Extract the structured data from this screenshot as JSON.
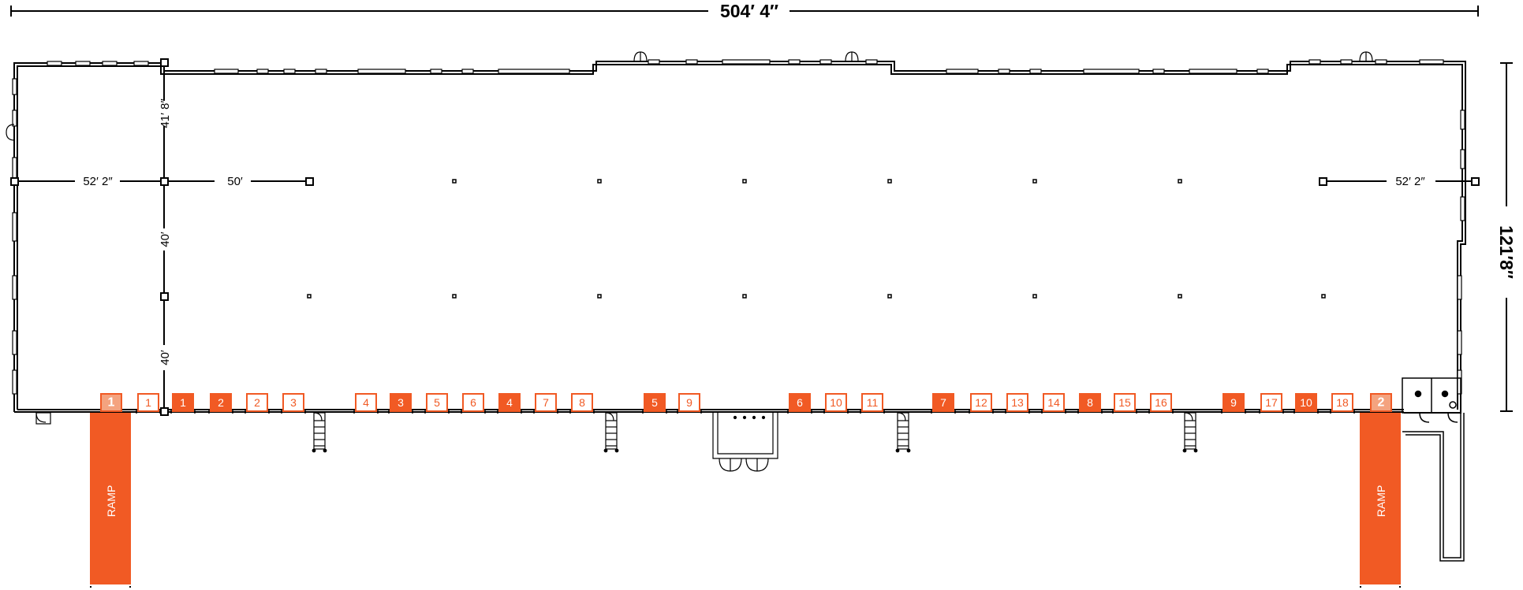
{
  "colors": {
    "accent": "#f15a24",
    "accent_light": "#f4a37f",
    "line": "#000000",
    "background": "#ffffff"
  },
  "dimensions": {
    "width_total": "504′ 4″",
    "depth_total": "121′8″",
    "bay_end_left": "52′ 2″",
    "bay_end_right": "52′ 2″",
    "bay_typical": "50′",
    "depth_top": "41′ 8″",
    "depth_middle": "40′",
    "depth_bottom": "40′"
  },
  "ramps": [
    {
      "number": "1",
      "label": "RAMP"
    },
    {
      "number": "2",
      "label": "RAMP"
    }
  ],
  "doors": [
    {
      "number": "1",
      "type": "outline"
    },
    {
      "number": "1",
      "type": "filled"
    },
    {
      "number": "2",
      "type": "filled"
    },
    {
      "number": "2",
      "type": "outline"
    },
    {
      "number": "3",
      "type": "outline"
    },
    {
      "number": "4",
      "type": "outline"
    },
    {
      "number": "3",
      "type": "filled"
    },
    {
      "number": "5",
      "type": "outline"
    },
    {
      "number": "6",
      "type": "outline"
    },
    {
      "number": "4",
      "type": "filled"
    },
    {
      "number": "7",
      "type": "outline"
    },
    {
      "number": "8",
      "type": "outline"
    },
    {
      "number": "5",
      "type": "filled"
    },
    {
      "number": "9",
      "type": "outline"
    },
    {
      "number": "6",
      "type": "filled"
    },
    {
      "number": "10",
      "type": "outline"
    },
    {
      "number": "11",
      "type": "outline"
    },
    {
      "number": "7",
      "type": "filled"
    },
    {
      "number": "12",
      "type": "outline"
    },
    {
      "number": "13",
      "type": "outline"
    },
    {
      "number": "14",
      "type": "outline"
    },
    {
      "number": "8",
      "type": "filled"
    },
    {
      "number": "15",
      "type": "outline"
    },
    {
      "number": "16",
      "type": "outline"
    },
    {
      "number": "9",
      "type": "filled"
    },
    {
      "number": "17",
      "type": "outline"
    },
    {
      "number": "10",
      "type": "filled"
    },
    {
      "number": "18",
      "type": "outline"
    }
  ]
}
